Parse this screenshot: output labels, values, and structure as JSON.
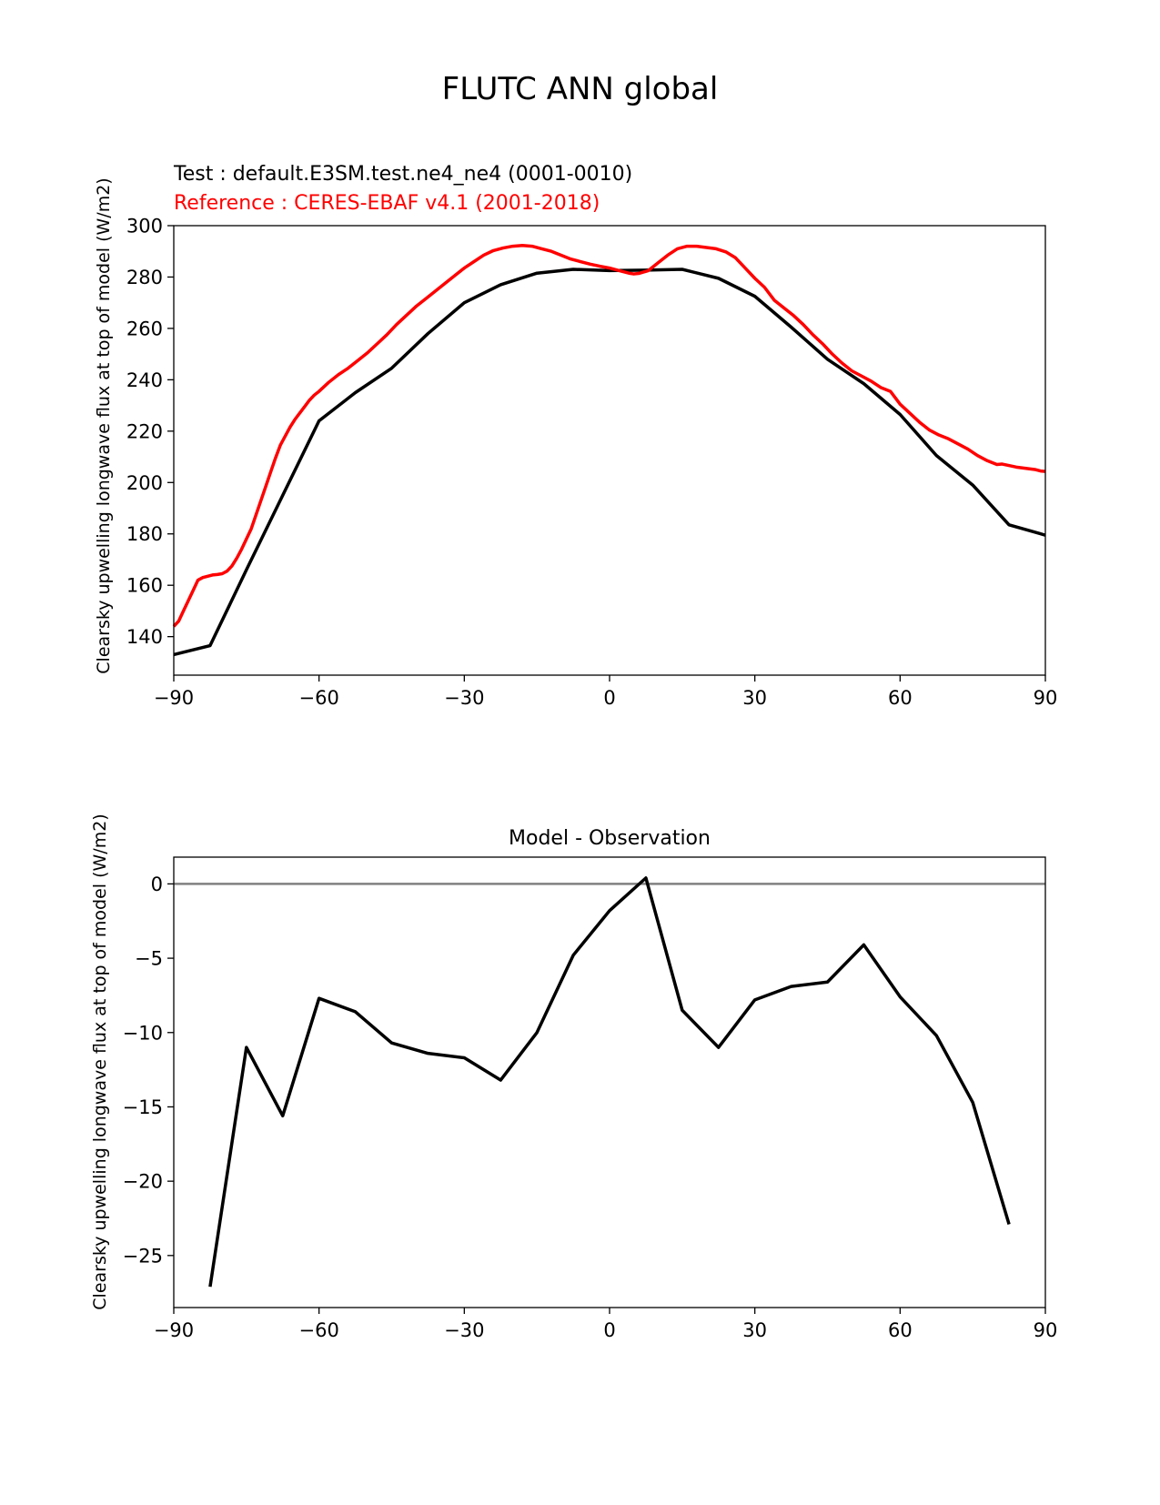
{
  "figure": {
    "title": "FLUTC ANN global"
  },
  "chart_data": [
    {
      "type": "line",
      "test_label": "Test : default.E3SM.test.ne4_ne4 (0001-0010)",
      "reference_label": "Reference : CERES-EBAF v4.1 (2001-2018)",
      "title": "",
      "xlabel": "",
      "ylabel": "Clearsky upwelling longwave flux at top of model (W/m2)",
      "xlim": [
        -90,
        90
      ],
      "ylim": [
        125,
        300
      ],
      "xticks": [
        -90,
        -60,
        -30,
        0,
        30,
        60,
        90
      ],
      "xtick_labels": [
        "−90",
        "−60",
        "−30",
        "0",
        "30",
        "60",
        "90"
      ],
      "yticks": [
        140,
        160,
        180,
        200,
        220,
        240,
        260,
        280,
        300
      ],
      "ytick_labels": [
        "140",
        "160",
        "180",
        "200",
        "220",
        "240",
        "260",
        "280",
        "300"
      ],
      "grid": false,
      "series": [
        {
          "role": "test",
          "color": "#000000",
          "x": [
            -90,
            -82.5,
            -75,
            -67.5,
            -60,
            -52.5,
            -45,
            -37.5,
            -30,
            -22.5,
            -15,
            -7.5,
            0,
            7.5,
            15,
            22.5,
            30,
            37.5,
            45,
            52.5,
            60,
            67.5,
            75,
            82.5,
            90
          ],
          "y": [
            133,
            136.5,
            166,
            195,
            224,
            235,
            244.5,
            258,
            270,
            277,
            281.5,
            283,
            282.5,
            282.7,
            283,
            279.5,
            272.5,
            260.5,
            248,
            238.5,
            226.5,
            210.5,
            199,
            183.5,
            179.5
          ]
        },
        {
          "role": "reference",
          "color": "#ff0000",
          "x": [
            -90,
            -89,
            -88,
            -87,
            -86,
            -85,
            -84,
            -83,
            -82,
            -81,
            -80,
            -79,
            -78,
            -77,
            -76,
            -75,
            -74,
            -73,
            -72,
            -71,
            -70,
            -69,
            -68,
            -67,
            -66,
            -65,
            -64,
            -63,
            -62,
            -61,
            -60,
            -58,
            -56,
            -54,
            -52,
            -50,
            -48,
            -46,
            -44,
            -42,
            -40,
            -38,
            -36,
            -34,
            -32,
            -30,
            -28,
            -26,
            -24,
            -22,
            -20,
            -18,
            -16,
            -14,
            -12,
            -10,
            -8,
            -6,
            -4,
            -2,
            0,
            2,
            4,
            5,
            6,
            8,
            10,
            12,
            14,
            16,
            18,
            20,
            22,
            24,
            26,
            28,
            30,
            32,
            34,
            36,
            38,
            40,
            42,
            44,
            46,
            48,
            50,
            52,
            54,
            56,
            58,
            60,
            62,
            64,
            66,
            68,
            70,
            72,
            74,
            76,
            78,
            80,
            81,
            82,
            84,
            86,
            88,
            89,
            90
          ],
          "y": [
            144,
            146,
            150,
            154,
            158,
            162,
            163,
            163.5,
            164,
            164.2,
            164.5,
            165.5,
            167.5,
            170.5,
            174,
            178,
            182,
            187.5,
            193,
            198.5,
            204,
            209.5,
            214.5,
            218,
            221.5,
            224.5,
            227,
            229.5,
            232,
            234,
            235.5,
            239,
            242,
            244.5,
            247.5,
            250.5,
            254,
            257.5,
            261.5,
            265,
            268.5,
            271.5,
            274.5,
            277.5,
            280.5,
            283.5,
            286,
            288.5,
            290.3,
            291.3,
            292,
            292.3,
            292,
            291,
            290,
            288.5,
            287,
            286,
            285,
            284.2,
            283.5,
            282.5,
            281.5,
            281.2,
            281.4,
            282.5,
            285.5,
            288.5,
            291,
            292,
            292,
            291.5,
            291,
            289.8,
            287.5,
            283.5,
            279.5,
            276,
            271,
            268,
            265,
            261.5,
            257.5,
            254,
            250,
            246.5,
            243.5,
            241.5,
            239.5,
            237,
            235.5,
            230.5,
            227,
            223.5,
            220.5,
            218.5,
            217,
            215,
            213,
            210.5,
            208.5,
            207,
            207.2,
            206.8,
            206,
            205.5,
            205,
            204.5,
            204.3
          ]
        }
      ]
    },
    {
      "type": "line",
      "title": "Model - Observation",
      "xlabel": "",
      "ylabel": "Clearsky upwelling longwave flux at top of model (W/m2)",
      "xlim": [
        -90,
        90
      ],
      "ylim": [
        -28.5,
        1.8
      ],
      "xticks": [
        -90,
        -60,
        -30,
        0,
        30,
        60,
        90
      ],
      "xtick_labels": [
        "−90",
        "−60",
        "−30",
        "0",
        "30",
        "60",
        "90"
      ],
      "yticks": [
        0,
        -5,
        -10,
        -15,
        -20,
        -25
      ],
      "ytick_labels": [
        "0",
        "−5",
        "−10",
        "−15",
        "−20",
        "−25"
      ],
      "grid": false,
      "zero_line_color": "#808080",
      "series": [
        {
          "role": "difference",
          "color": "#000000",
          "x": [
            -82.5,
            -75,
            -67.5,
            -60,
            -52.5,
            -45,
            -37.5,
            -30,
            -22.5,
            -15,
            -7.5,
            0,
            7.5,
            15,
            22.5,
            30,
            37.5,
            45,
            52.5,
            60,
            67.5,
            75,
            82.5
          ],
          "y": [
            -27.1,
            -11,
            -15.6,
            -7.7,
            -8.6,
            -10.7,
            -11.4,
            -11.7,
            -13.2,
            -10,
            -4.8,
            -1.8,
            0.4,
            -8.5,
            -11,
            -7.8,
            -6.9,
            -6.6,
            -4.1,
            -7.6,
            -10.2,
            -14.7,
            -22.9
          ]
        }
      ]
    }
  ]
}
